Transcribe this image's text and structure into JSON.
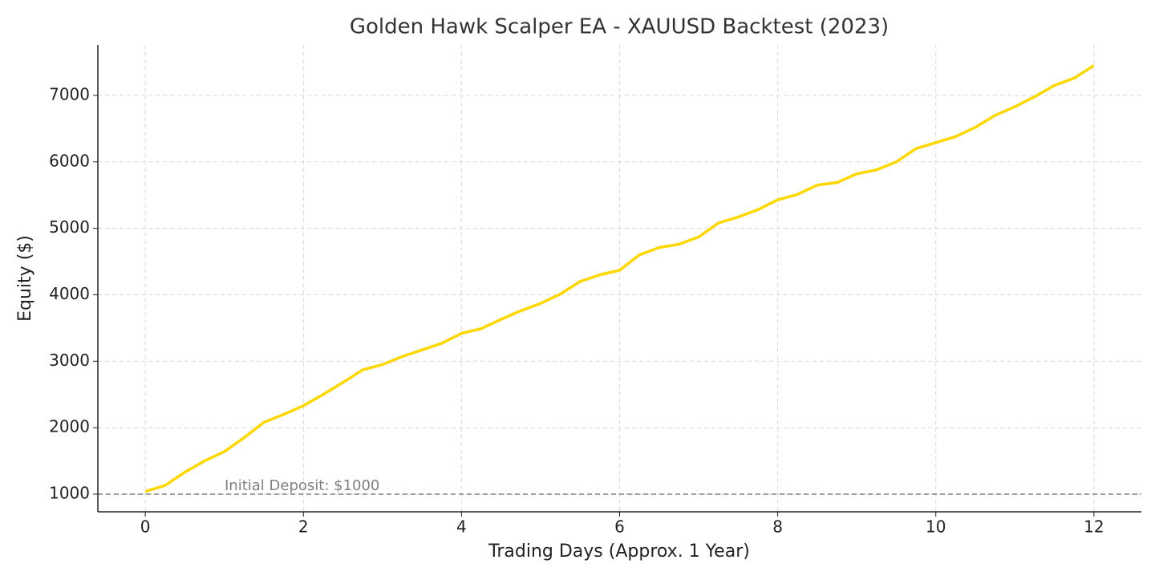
{
  "chart_data": {
    "type": "line",
    "title": "Golden Hawk Scalper EA - XAUUSD Backtest (2023)",
    "x_label": "Trading Days (Approx. 1 Year)",
    "y_label": "Equity ($)",
    "x": [
      0,
      0.25,
      0.5,
      0.75,
      1,
      1.25,
      1.5,
      1.75,
      2,
      2.25,
      2.5,
      2.75,
      3,
      3.25,
      3.5,
      3.75,
      4,
      4.25,
      4.5,
      4.75,
      5,
      5.25,
      5.5,
      5.75,
      6,
      6.25,
      6.5,
      6.75,
      7,
      7.25,
      7.5,
      7.75,
      8,
      8.25,
      8.5,
      8.75,
      9,
      9.25,
      9.5,
      9.75,
      10,
      10.25,
      10.5,
      10.75,
      11,
      11.25,
      11.5,
      11.75,
      12
    ],
    "series": [
      {
        "name": "Equity",
        "color": "#ffd700",
        "values": [
          1040,
          1130,
          1330,
          1500,
          1640,
          1850,
          2080,
          2200,
          2330,
          2500,
          2680,
          2870,
          2950,
          3070,
          3170,
          3270,
          3420,
          3490,
          3630,
          3760,
          3870,
          4010,
          4200,
          4300,
          4370,
          4600,
          4710,
          4760,
          4870,
          5080,
          5170,
          5280,
          5430,
          5510,
          5650,
          5690,
          5820,
          5880,
          6000,
          6200,
          6290,
          6380,
          6520,
          6700,
          6830,
          6980,
          7150,
          7260,
          7450
        ]
      }
    ],
    "reference_line": {
      "value": 1000,
      "label": "Initial Deposit: $1000",
      "color": "#808080"
    },
    "xlim": [
      -0.6,
      12.6
    ],
    "ylim": [
      734,
      7760
    ],
    "xticks": [
      0,
      2,
      4,
      6,
      8,
      10,
      12
    ],
    "yticks": [
      1000,
      2000,
      3000,
      4000,
      5000,
      6000,
      7000
    ],
    "grid": true
  }
}
